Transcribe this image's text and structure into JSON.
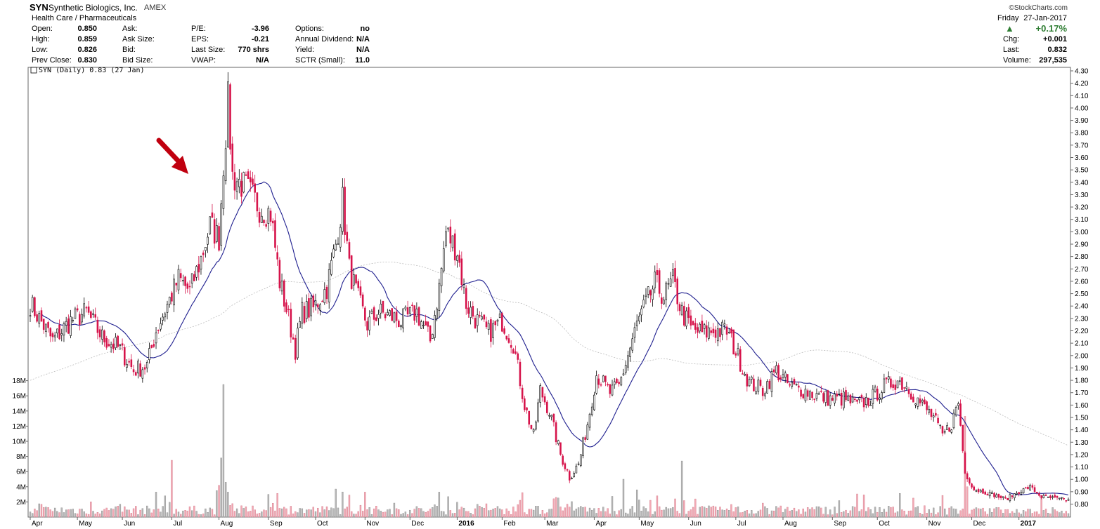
{
  "header": {
    "symbol": "SYN",
    "company": "Synthetic Biologics, Inc.",
    "exchange": "AMEX",
    "brand": "©StockCharts.com",
    "sector": "Health Care / Pharmaceuticals",
    "day": "Friday",
    "date": "27-Jan-2017",
    "col1": [
      {
        "label": "Open:",
        "value": "0.850"
      },
      {
        "label": "High:",
        "value": "0.859"
      },
      {
        "label": "Low:",
        "value": "0.826"
      },
      {
        "label": "Prev Close:",
        "value": "0.830"
      }
    ],
    "col2": [
      {
        "label": "Ask:",
        "value": ""
      },
      {
        "label": "Ask Size:",
        "value": ""
      },
      {
        "label": "Bid:",
        "value": ""
      },
      {
        "label": "Bid Size:",
        "value": ""
      }
    ],
    "col3": [
      {
        "label": "P/E:",
        "value": "-3.96"
      },
      {
        "label": "EPS:",
        "value": "-0.21"
      },
      {
        "label": "Last Size:",
        "value": "770 shrs"
      },
      {
        "label": "VWAP:",
        "value": "N/A"
      }
    ],
    "col4": [
      {
        "label": "Options:",
        "value": "no"
      },
      {
        "label": "Annual Dividend:",
        "value": "N/A"
      },
      {
        "label": "Yield:",
        "value": "N/A"
      },
      {
        "label": "SCTR (Small):",
        "value": "11.0"
      }
    ],
    "pct_change": "+0.17%",
    "right": [
      {
        "label": "Chg:",
        "value": "+0.001"
      },
      {
        "label": "Last:",
        "value": "0.832"
      },
      {
        "label": "Volume:",
        "value": "297,535"
      }
    ]
  },
  "chart_data": {
    "type": "candlestick",
    "legend": "SYN (Daily) 0.83 (27 Jan)",
    "colors": {
      "up": "#000000",
      "down": "#d6134a",
      "ma_short": "#1f1f8f",
      "ma_long": "#bbbbbb",
      "vol_up": "#b8b8b8",
      "vol_down": "#f2a9b4",
      "annotation": "#c0000f"
    },
    "price_ticks": [
      "4.30",
      "4.20",
      "4.10",
      "4.00",
      "3.90",
      "3.80",
      "3.70",
      "3.60",
      "3.50",
      "3.40",
      "3.30",
      "3.20",
      "3.10",
      "3.00",
      "2.90",
      "2.80",
      "2.70",
      "2.60",
      "2.50",
      "2.40",
      "2.30",
      "2.20",
      "2.10",
      "2.00",
      "1.90",
      "1.80",
      "1.70",
      "1.60",
      "1.50",
      "1.40",
      "1.30",
      "1.20",
      "1.10",
      "1.00",
      "0.90",
      "0.80"
    ],
    "volume_ticks": [
      "18M",
      "16M",
      "14M",
      "12M",
      "10M",
      "8M",
      "6M",
      "4M",
      "2M"
    ],
    "x_labels": [
      {
        "label": "Apr",
        "bold": false
      },
      {
        "label": "May",
        "bold": false
      },
      {
        "label": "Jun",
        "bold": false
      },
      {
        "label": "Jul",
        "bold": false
      },
      {
        "label": "Aug",
        "bold": false
      },
      {
        "label": "Sep",
        "bold": false
      },
      {
        "label": "Oct",
        "bold": false
      },
      {
        "label": "Nov",
        "bold": false
      },
      {
        "label": "Dec",
        "bold": false
      },
      {
        "label": "2016",
        "bold": true
      },
      {
        "label": "Feb",
        "bold": false
      },
      {
        "label": "Mar",
        "bold": false
      },
      {
        "label": "Apr",
        "bold": false
      },
      {
        "label": "May",
        "bold": false
      },
      {
        "label": "Jun",
        "bold": false
      },
      {
        "label": "Jul",
        "bold": false
      },
      {
        "label": "Aug",
        "bold": false
      },
      {
        "label": "Sep",
        "bold": false
      },
      {
        "label": "Oct",
        "bold": false
      },
      {
        "label": "Nov",
        "bold": false
      },
      {
        "label": "Dec",
        "bold": false
      },
      {
        "label": "2017",
        "bold": true
      }
    ],
    "close_anchors": [
      [
        0,
        2.42
      ],
      [
        10,
        2.12
      ],
      [
        18,
        2.28
      ],
      [
        25,
        2.35
      ],
      [
        32,
        2.15
      ],
      [
        40,
        2.05
      ],
      [
        46,
        1.88
      ],
      [
        52,
        1.92
      ],
      [
        56,
        2.2
      ],
      [
        62,
        2.45
      ],
      [
        66,
        2.62
      ],
      [
        71,
        2.52
      ],
      [
        76,
        2.78
      ],
      [
        80,
        3.05
      ],
      [
        84,
        2.95
      ],
      [
        86,
        3.55
      ],
      [
        88,
        4.05
      ],
      [
        90,
        3.45
      ],
      [
        96,
        3.35
      ],
      [
        102,
        3.2
      ],
      [
        107,
        3.15
      ],
      [
        111,
        2.6
      ],
      [
        115,
        2.3
      ],
      [
        118,
        2.05
      ],
      [
        121,
        2.35
      ],
      [
        126,
        2.38
      ],
      [
        132,
        2.55
      ],
      [
        136,
        2.9
      ],
      [
        139,
        3.25
      ],
      [
        142,
        2.7
      ],
      [
        146,
        2.45
      ],
      [
        150,
        2.25
      ],
      [
        155,
        2.35
      ],
      [
        160,
        2.32
      ],
      [
        165,
        2.28
      ],
      [
        172,
        2.35
      ],
      [
        178,
        2.12
      ],
      [
        182,
        2.55
      ],
      [
        185,
        3.0
      ],
      [
        190,
        2.85
      ],
      [
        194,
        2.42
      ],
      [
        198,
        2.3
      ],
      [
        204,
        2.18
      ],
      [
        210,
        2.28
      ],
      [
        215,
        2.1
      ],
      [
        220,
        1.6
      ],
      [
        224,
        1.35
      ],
      [
        227,
        1.72
      ],
      [
        231,
        1.55
      ],
      [
        236,
        1.2
      ],
      [
        240,
        1.02
      ],
      [
        244,
        1.12
      ],
      [
        248,
        1.45
      ],
      [
        252,
        1.85
      ],
      [
        258,
        1.7
      ],
      [
        262,
        1.75
      ],
      [
        266,
        2.0
      ],
      [
        270,
        2.25
      ],
      [
        274,
        2.42
      ],
      [
        278,
        2.58
      ],
      [
        282,
        2.48
      ],
      [
        286,
        2.6
      ],
      [
        290,
        2.35
      ],
      [
        294,
        2.22
      ],
      [
        299,
        2.18
      ],
      [
        304,
        2.2
      ],
      [
        310,
        2.2
      ],
      [
        316,
        1.95
      ],
      [
        320,
        1.78
      ],
      [
        326,
        1.72
      ],
      [
        332,
        1.88
      ],
      [
        338,
        1.75
      ],
      [
        344,
        1.72
      ],
      [
        350,
        1.68
      ],
      [
        356,
        1.65
      ],
      [
        362,
        1.65
      ],
      [
        368,
        1.6
      ],
      [
        374,
        1.65
      ],
      [
        380,
        1.75
      ],
      [
        386,
        1.8
      ],
      [
        390,
        1.75
      ],
      [
        396,
        1.62
      ],
      [
        402,
        1.5
      ],
      [
        406,
        1.35
      ],
      [
        410,
        1.45
      ],
      [
        413,
        1.62
      ],
      [
        416,
        1.05
      ],
      [
        420,
        0.92
      ],
      [
        428,
        0.88
      ],
      [
        434,
        0.84
      ],
      [
        440,
        0.9
      ],
      [
        445,
        0.94
      ],
      [
        450,
        0.86
      ],
      [
        458,
        0.84
      ],
      [
        462,
        0.83
      ]
    ],
    "annotations": [
      {
        "type": "arrow",
        "target": "Jul 2015 breakout"
      }
    ]
  }
}
